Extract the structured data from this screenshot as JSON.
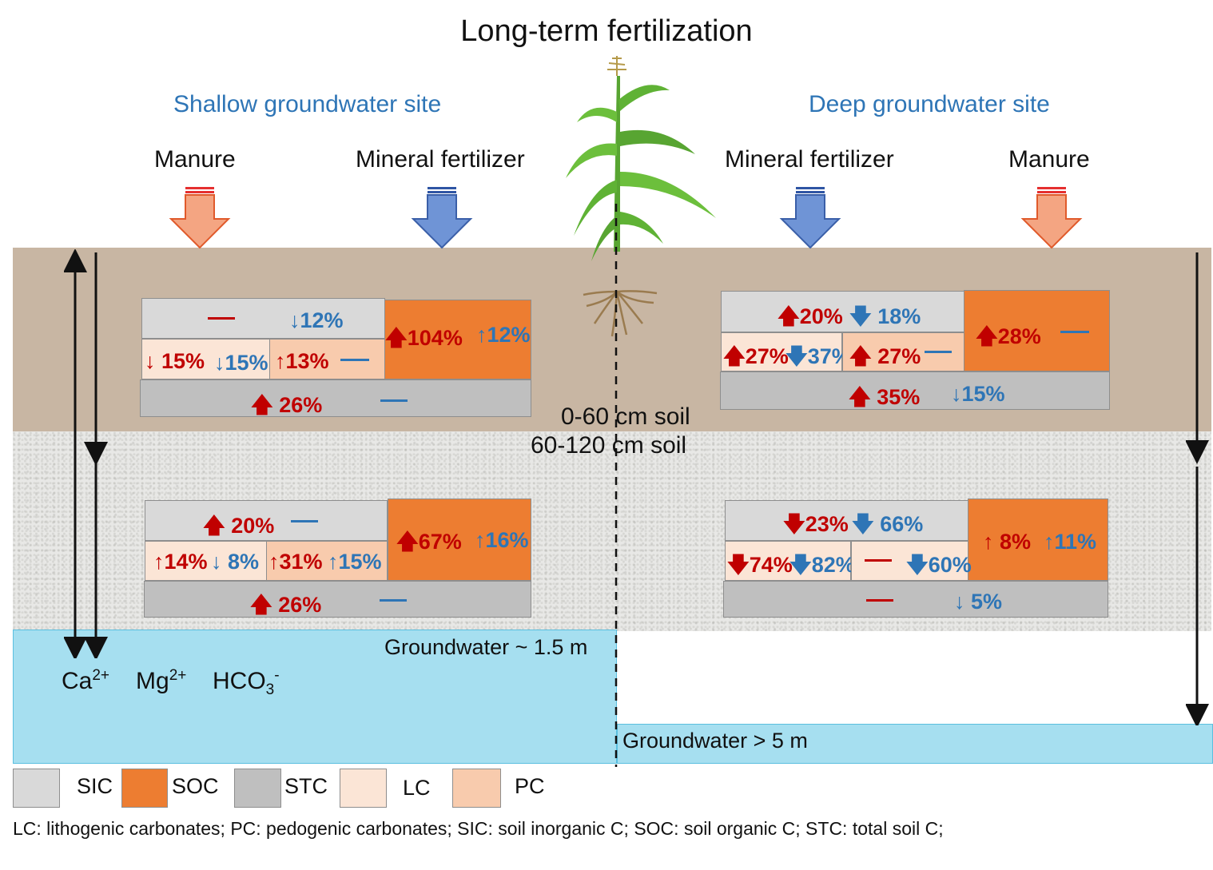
{
  "title": "Long-term fertilization",
  "sites": {
    "shallow": "Shallow groundwater site",
    "deep": "Deep groundwater site"
  },
  "fertilizers": {
    "manure": "Manure",
    "mineral": "Mineral fertilizer"
  },
  "depths": {
    "top": "0-60 cm soil",
    "bottom": "60-120 cm soil"
  },
  "groundwater": {
    "shallow": "Groundwater ~ 1.5 m",
    "deep": "Groundwater > 5 m"
  },
  "ions": {
    "ca": "Ca",
    "ca_sup": "2+",
    "mg": "Mg",
    "mg_sup": "2+",
    "hco": "HCO",
    "hco_sub": "3",
    "hco_sup": "-"
  },
  "colors": {
    "manure_arrow": "#f4a582",
    "mineral_arrow": "#6f94d6",
    "increase": "#c00000",
    "decrease": "#2e75b6",
    "SIC": "#d9d9d9",
    "SOC": "#ed7d31",
    "STC": "#bfbfbf",
    "LC": "#fbe5d6",
    "PC": "#f8cbad"
  },
  "shallow_top": {
    "sic_blue": "12%",
    "soc_red": "104%",
    "soc_blue": "12%",
    "lc_red": "15%",
    "lc_blue": "15%",
    "pc_red": "13%",
    "stc_red": "26%"
  },
  "shallow_bottom": {
    "sic_red": "20%",
    "soc_red": "67%",
    "soc_blue": "16%",
    "lc_red": "14%",
    "lc_blue": "8%",
    "pc_red": "31%",
    "pc_blue": "15%",
    "stc_red": "26%"
  },
  "deep_top": {
    "sic_red": "20%",
    "sic_blue": "18%",
    "soc_red": "28%",
    "lc_red": "27%",
    "lc_blue": "37%",
    "pc_red": "27%",
    "stc_red": "35%",
    "stc_blue": "15%"
  },
  "deep_bottom": {
    "sic_red": "23%",
    "sic_blue": "66%",
    "soc_red": "8%",
    "soc_blue": "11%",
    "lc_red": "74%",
    "lc_blue": "82%",
    "pc_blue": "60%",
    "stc_blue": "5%"
  },
  "legend": {
    "sic": "SIC",
    "soc": "SOC",
    "stc": "STC",
    "lc": "LC",
    "pc": "PC"
  },
  "note": "LC: lithogenic carbonates; PC: pedogenic carbonates; SIC: soil inorganic C; SOC: soil organic C; STC: total soil C;"
}
